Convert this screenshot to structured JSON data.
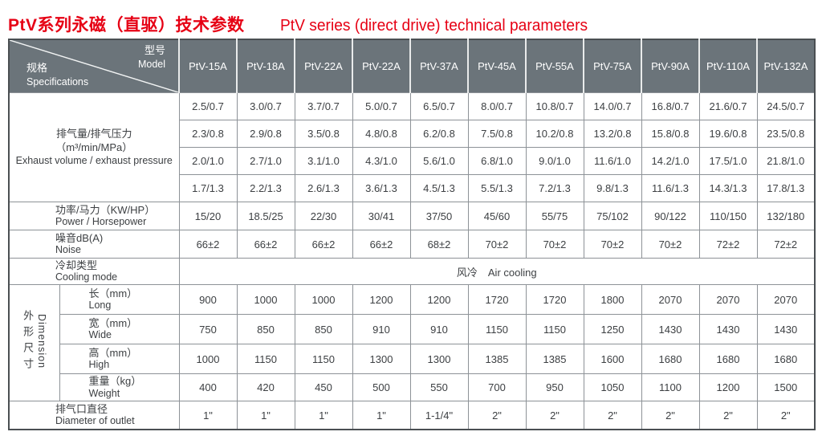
{
  "title": {
    "zh": "PtV系列永磁（直驱）技术参数",
    "en": "PtV series (direct drive) technical parameters"
  },
  "colors": {
    "title_red": "#e60014",
    "header_gray": "#6b747a",
    "grid_line": "#8d9297",
    "outer_border": "#4a4f52"
  },
  "table": {
    "corner": {
      "model_zh": "型号",
      "model_en": "Model",
      "spec_zh": "规格",
      "spec_en": "Specifications"
    },
    "models": [
      "PtV-15A",
      "PtV-18A",
      "PtV-22A",
      "PtV-22A",
      "PtV-37A",
      "PtV-45A",
      "PtV-55A",
      "PtV-75A",
      "PtV-90A",
      "PtV-110A",
      "PtV-132A"
    ],
    "rows": {
      "exhaust": {
        "label_zh": "排气量/排气压力",
        "label_unit": "（m³/min/MPa）",
        "label_en": "Exhaust volume / exhaust pressure",
        "values": [
          [
            "2.5/0.7",
            "3.0/0.7",
            "3.7/0.7",
            "5.0/0.7",
            "6.5/0.7",
            "8.0/0.7",
            "10.8/0.7",
            "14.0/0.7",
            "16.8/0.7",
            "21.6/0.7",
            "24.5/0.7"
          ],
          [
            "2.3/0.8",
            "2.9/0.8",
            "3.5/0.8",
            "4.8/0.8",
            "6.2/0.8",
            "7.5/0.8",
            "10.2/0.8",
            "13.2/0.8",
            "15.8/0.8",
            "19.6/0.8",
            "23.5/0.8"
          ],
          [
            "2.0/1.0",
            "2.7/1.0",
            "3.1/1.0",
            "4.3/1.0",
            "5.6/1.0",
            "6.8/1.0",
            "9.0/1.0",
            "11.6/1.0",
            "14.2/1.0",
            "17.5/1.0",
            "21.8/1.0"
          ],
          [
            "1.7/1.3",
            "2.2/1.3",
            "2.6/1.3",
            "3.6/1.3",
            "4.5/1.3",
            "5.5/1.3",
            "7.2/1.3",
            "9.8/1.3",
            "11.6/1.3",
            "14.3/1.3",
            "17.8/1.3"
          ]
        ]
      },
      "power": {
        "label_zh": "功率/马力（KW/HP）",
        "label_en": "Power / Horsepower",
        "values": [
          "15/20",
          "18.5/25",
          "22/30",
          "30/41",
          "37/50",
          "45/60",
          "55/75",
          "75/102",
          "90/122",
          "110/150",
          "132/180"
        ]
      },
      "noise": {
        "label_zh": "噪音dB(A)",
        "label_en": "Noise",
        "values": [
          "66±2",
          "66±2",
          "66±2",
          "66±2",
          "68±2",
          "70±2",
          "70±2",
          "70±2",
          "70±2",
          "72±2",
          "72±2"
        ]
      },
      "cooling": {
        "label_zh": "冷却类型",
        "label_en": "Cooling mode",
        "value": "风冷　Air cooling"
      },
      "dimension": {
        "group_zh": "外形尺寸",
        "group_en": "Dimension",
        "rows": [
          {
            "label_zh": "长（mm）",
            "label_en": "Long",
            "values": [
              "900",
              "1000",
              "1000",
              "1200",
              "1200",
              "1720",
              "1720",
              "1800",
              "2070",
              "2070",
              "2070"
            ]
          },
          {
            "label_zh": "宽（mm）",
            "label_en": "Wide",
            "values": [
              "750",
              "850",
              "850",
              "910",
              "910",
              "1150",
              "1150",
              "1250",
              "1430",
              "1430",
              "1430"
            ]
          },
          {
            "label_zh": "高（mm）",
            "label_en": "High",
            "values": [
              "1000",
              "1150",
              "1150",
              "1300",
              "1300",
              "1385",
              "1385",
              "1600",
              "1680",
              "1680",
              "1680"
            ]
          },
          {
            "label_zh": "重量（kg）",
            "label_en": "Weight",
            "values": [
              "400",
              "420",
              "450",
              "500",
              "550",
              "700",
              "950",
              "1050",
              "1100",
              "1200",
              "1500"
            ]
          }
        ]
      },
      "outlet": {
        "label_zh": "排气口直径",
        "label_en": "Diameter of outlet",
        "values": [
          "1\"",
          "1\"",
          "1\"",
          "1\"",
          "1-1/4\"",
          "2\"",
          "2\"",
          "2\"",
          "2\"",
          "2\"",
          "2\""
        ]
      }
    }
  }
}
